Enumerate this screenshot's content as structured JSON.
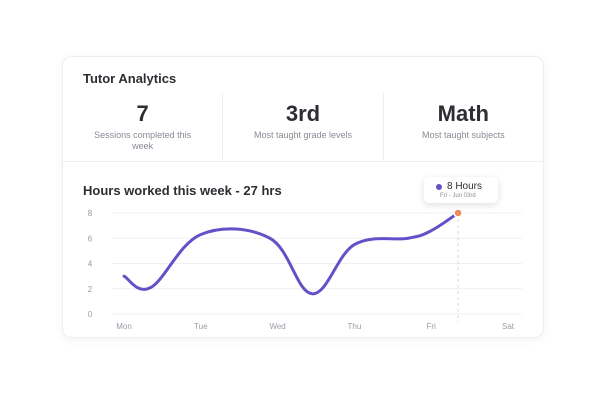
{
  "card": {
    "title": "Tutor Analytics"
  },
  "stats": [
    {
      "value": "7",
      "label": "Sessions completed this week"
    },
    {
      "value": "3rd",
      "label": "Most taught grade levels"
    },
    {
      "value": "Math",
      "label": "Most taught subjects"
    }
  ],
  "tooltip": {
    "value": "8 Hours",
    "date": "Fri - Jun 03rd"
  },
  "colors": {
    "line": "#6450c7",
    "highlight": "#f08a5d"
  },
  "chart_data": {
    "type": "line",
    "title": "Hours worked this week - 27 hrs",
    "xlabel": "",
    "ylabel": "",
    "categories": [
      "Mon",
      "Tue",
      "Wed",
      "Thu",
      "Fri",
      "Sat"
    ],
    "yticks": [
      0,
      2,
      4,
      6,
      8
    ],
    "ylim": [
      0,
      8
    ],
    "grid": true,
    "series": [
      {
        "x": [
          0,
          0.35,
          1.0,
          1.9,
          2.45,
          3.0,
          3.7,
          4.0,
          4.35
        ],
        "values": [
          3.0,
          2.1,
          6.3,
          6.0,
          1.6,
          5.5,
          6.0,
          6.6,
          8.0
        ]
      }
    ],
    "highlight": {
      "x": 4.35,
      "y": 8.0
    }
  }
}
